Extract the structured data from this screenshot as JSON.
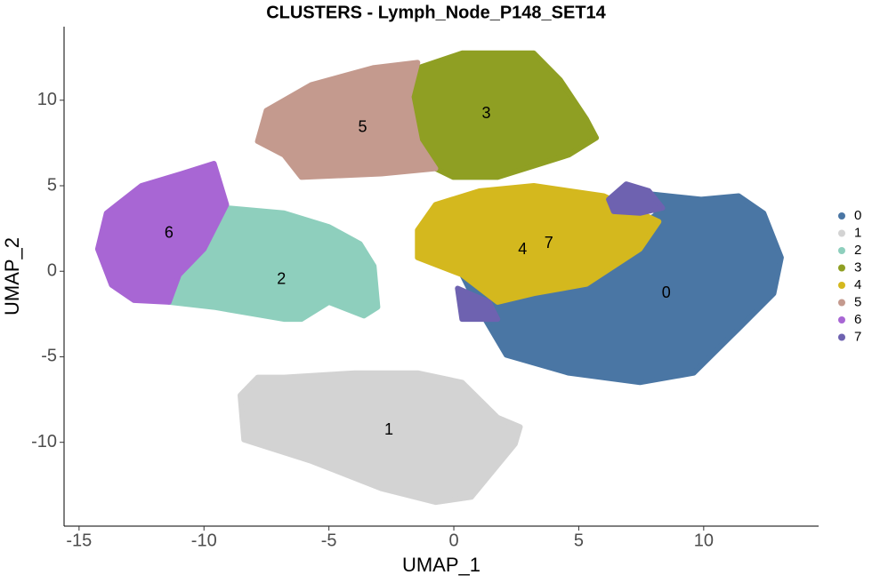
{
  "chart_data": {
    "type": "scatter",
    "title": "CLUSTERS - Lymph_Node_P148_SET14",
    "x_label": "UMAP_1",
    "y_label": "UMAP_2",
    "xlim": [
      -15.6,
      14.6
    ],
    "ylim": [
      -14.9,
      14.3
    ],
    "xticks": [
      -15,
      -10,
      -5,
      0,
      5,
      10
    ],
    "yticks": [
      -10,
      -5,
      0,
      5,
      10
    ],
    "grid": false,
    "legend": "right",
    "series": [
      {
        "name": "0",
        "color": "#4a76a4",
        "x": [
          6.7,
          9.9,
          11.4,
          12.4,
          13.1,
          12.8,
          11.4,
          9.6,
          7.45,
          4.6,
          2.1,
          1.05,
          0.33,
          3.2,
          6.0,
          8.2
        ],
        "y": [
          4.7,
          4.2,
          4.4,
          3.4,
          0.8,
          -1.3,
          -3.35,
          -5.95,
          -6.5,
          -5.95,
          -4.9,
          -2.3,
          -0.2,
          -0.75,
          1.3,
          3.4
        ]
      },
      {
        "name": "1",
        "color": "#d3d3d3",
        "x": [
          -8.55,
          -7.85,
          -6.8,
          -3.95,
          -1.45,
          0.33,
          1.75,
          2.65,
          2.45,
          0.7,
          -0.73,
          -2.9,
          -5.7,
          -8.4
        ],
        "y": [
          -7.25,
          -6.2,
          -6.2,
          -5.95,
          -5.95,
          -6.5,
          -8.55,
          -9.1,
          -10.1,
          -13.2,
          -13.5,
          -12.7,
          -11.1,
          -9.85
        ]
      },
      {
        "name": "2",
        "color": "#8ecfbd",
        "x": [
          -9.1,
          -6.8,
          -5.0,
          -3.75,
          -3.2,
          -3.05,
          -3.6,
          -5.0,
          -6.1,
          -6.8,
          -9.6,
          -11.4,
          -11.0,
          -10.0
        ],
        "y": [
          3.7,
          3.4,
          2.6,
          1.6,
          0.3,
          -2.1,
          -2.6,
          -1.8,
          -2.8,
          -2.8,
          -2.1,
          -1.8,
          -0.2,
          1.3
        ]
      },
      {
        "name": "3",
        "color": "#8f9f23",
        "x": [
          -1.8,
          0.33,
          3.2,
          4.25,
          5.3,
          5.7,
          4.6,
          1.75,
          -0.02,
          -0.73,
          -1.45,
          -1.8
        ],
        "y": [
          11.7,
          12.75,
          12.75,
          11.2,
          8.9,
          7.8,
          6.8,
          5.5,
          5.5,
          6.0,
          7.6,
          10.2
        ]
      },
      {
        "name": "4",
        "color": "#d4b81e",
        "x": [
          -1.45,
          -0.73,
          1.05,
          3.2,
          6.0,
          8.2,
          7.45,
          5.3,
          3.2,
          1.75,
          0.33,
          -1.45
        ],
        "y": [
          2.4,
          3.9,
          4.7,
          5.0,
          4.4,
          2.9,
          1.3,
          -0.75,
          -1.3,
          -1.8,
          -0.2,
          0.8
        ]
      },
      {
        "name": "5",
        "color": "#c49a8e",
        "x": [
          -7.85,
          -7.5,
          -5.7,
          -3.2,
          -1.45,
          -1.8,
          -1.45,
          -0.73,
          -2.9,
          -6.1,
          -6.8
        ],
        "y": [
          7.6,
          9.4,
          10.9,
          11.9,
          12.2,
          10.2,
          7.6,
          6.0,
          5.7,
          5.5,
          6.8
        ]
      },
      {
        "name": "6",
        "color": "#a866d4",
        "x": [
          -14.25,
          -13.9,
          -12.5,
          -10.9,
          -9.6,
          -9.1,
          -10.0,
          -11.0,
          -11.4,
          -12.8,
          -13.7
        ],
        "y": [
          1.3,
          3.4,
          5.0,
          5.7,
          6.3,
          3.9,
          1.3,
          -0.2,
          -1.8,
          -1.7,
          -0.8
        ]
      },
      {
        "name": "7",
        "color": "#6e62b0",
        "x": [
          6.2,
          6.9,
          7.8,
          8.35,
          7.45,
          6.4,
          null,
          0.15,
          1.4,
          1.75,
          0.33
        ],
        "y": [
          4.2,
          5.1,
          4.7,
          3.7,
          3.4,
          3.5,
          null,
          -1.0,
          -1.8,
          -2.8,
          -2.8
        ]
      }
    ],
    "annotations": [
      {
        "text": "0",
        "x": 8.5,
        "y": -1.3
      },
      {
        "text": "1",
        "x": -2.6,
        "y": -9.3
      },
      {
        "text": "2",
        "x": -6.9,
        "y": -0.5
      },
      {
        "text": "3",
        "x": 1.3,
        "y": 9.2
      },
      {
        "text": "4",
        "x": 2.75,
        "y": 1.25
      },
      {
        "text": "5",
        "x": -3.65,
        "y": 8.4
      },
      {
        "text": "6",
        "x": -11.4,
        "y": 2.2
      },
      {
        "text": "7",
        "x": 3.8,
        "y": 1.6
      }
    ]
  }
}
